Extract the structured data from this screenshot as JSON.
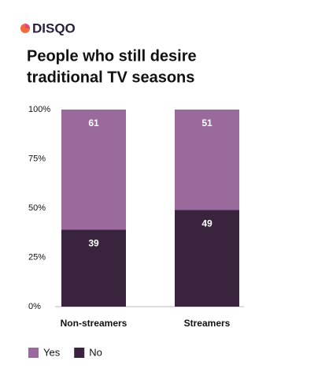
{
  "logo": "DISQO",
  "chart_data": {
    "type": "stacked-bar",
    "title": [
      "People who still desire",
      "traditional TV seasons"
    ],
    "categories": [
      "Non-streamers",
      "Streamers"
    ],
    "series": [
      {
        "name": "Yes",
        "color": "#9a6a9d",
        "values": [
          61,
          51
        ]
      },
      {
        "name": "No",
        "color": "#3a243d",
        "values": [
          39,
          49
        ]
      }
    ],
    "ylim": [
      0,
      100
    ],
    "yticks": [
      {
        "value": 0,
        "label": "0%"
      },
      {
        "value": 25,
        "label": "25%"
      },
      {
        "value": 50,
        "label": "50%"
      },
      {
        "value": 75,
        "label": "75%"
      },
      {
        "value": 100,
        "label": "100%"
      }
    ],
    "legend": "bottom-left"
  }
}
